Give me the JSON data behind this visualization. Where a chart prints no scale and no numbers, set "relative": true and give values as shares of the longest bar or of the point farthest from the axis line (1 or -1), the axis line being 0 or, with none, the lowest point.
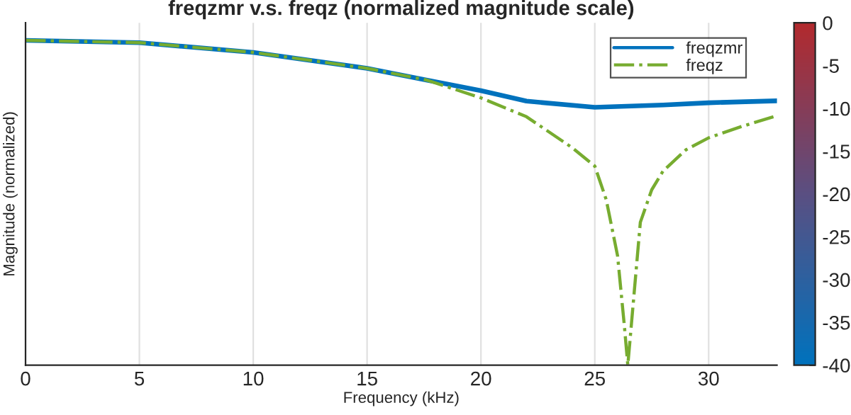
{
  "chart_data": {
    "type": "line",
    "title": "freqzmr v.s. freqz (normalized magnitude scale)",
    "xlabel": "Frequency (kHz)",
    "ylabel": "Magnitude (normalized)",
    "relative": true,
    "xlim": [
      0,
      33
    ],
    "xticks": [
      0,
      5,
      10,
      15,
      20,
      25,
      30
    ],
    "grid": "x",
    "legend": "top right",
    "clim": [
      -40,
      0
    ],
    "cticks": [
      0,
      -5,
      -10,
      -15,
      -20,
      -25,
      -30,
      -35,
      -40
    ],
    "series": [
      {
        "name": "freqzmr",
        "color": "#0072bd",
        "line_style": "solid",
        "x": [
          0,
          5,
          10,
          15,
          17.6,
          20,
          22,
          25,
          28,
          30,
          33
        ],
        "values": [
          1.0,
          0.993,
          0.963,
          0.914,
          0.878,
          0.845,
          0.813,
          0.794,
          0.801,
          0.808,
          0.814
        ]
      },
      {
        "name": "freqz",
        "color": "#77ac30",
        "line_style": "dashdot",
        "x": [
          0,
          5,
          10,
          15,
          17.6,
          20,
          22,
          24,
          25,
          25.5,
          26,
          26.3,
          26.45,
          26.6,
          27,
          27.5,
          28,
          29,
          30,
          31.5,
          33
        ],
        "values": [
          1.0,
          0.993,
          0.963,
          0.914,
          0.878,
          0.823,
          0.765,
          0.67,
          0.613,
          0.51,
          0.337,
          0.12,
          0,
          0.12,
          0.44,
          0.54,
          0.598,
          0.663,
          0.7,
          0.736,
          0.768
        ]
      }
    ]
  }
}
